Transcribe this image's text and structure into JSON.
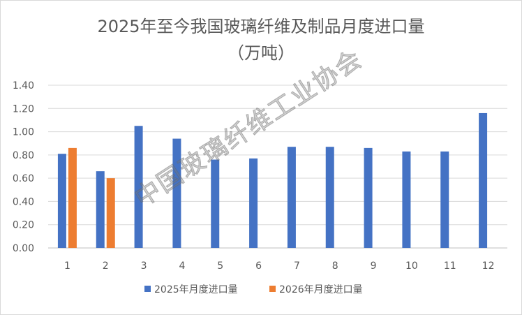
{
  "chart_data": {
    "type": "bar",
    "title_line1": "2025年至今我国玻璃纤维及制品月度进口量",
    "title_line2": "（万吨）",
    "categories": [
      "1",
      "2",
      "3",
      "4",
      "5",
      "6",
      "7",
      "8",
      "9",
      "10",
      "11",
      "12"
    ],
    "series": [
      {
        "name": "2025年月度进口量",
        "color": "#4472C4",
        "values": [
          0.81,
          0.66,
          1.05,
          0.94,
          0.76,
          0.77,
          0.87,
          0.87,
          0.86,
          0.83,
          0.83,
          1.16
        ]
      },
      {
        "name": "2026年月度进口量",
        "color": "#ED7D31",
        "values": [
          0.86,
          0.6,
          null,
          null,
          null,
          null,
          null,
          null,
          null,
          null,
          null,
          null
        ]
      }
    ],
    "yticks": [
      "0.00",
      "0.20",
      "0.40",
      "0.60",
      "0.80",
      "1.00",
      "1.20",
      "1.40"
    ],
    "ylim": [
      0,
      1.4
    ],
    "grid": true,
    "legend_position": "bottom"
  },
  "watermark": "中国玻璃纤维工业协会"
}
